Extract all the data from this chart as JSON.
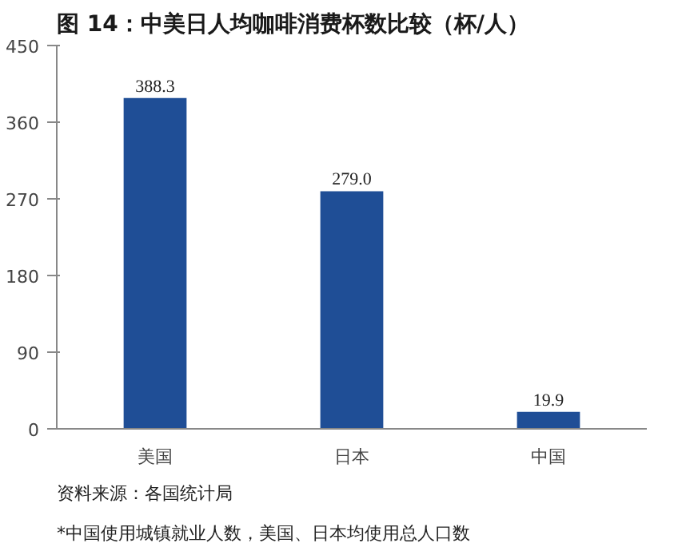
{
  "chart_data": {
    "type": "bar",
    "title": "图 14：中美日人均咖啡消费杯数比较（杯/人）",
    "categories": [
      "美国",
      "日本",
      "中国"
    ],
    "values": [
      388.3,
      279.0,
      19.9
    ],
    "value_labels": [
      "388.3",
      "279.0",
      "19.9"
    ],
    "color": "#1f4e96",
    "ylim": [
      0,
      450
    ],
    "yticks": [
      0,
      90,
      180,
      270,
      360,
      450
    ],
    "grid": false,
    "annotations": [
      "资料来源：各国统计局",
      "*中国使用城镇就业人数，美国、日本均使用总人口数"
    ]
  }
}
